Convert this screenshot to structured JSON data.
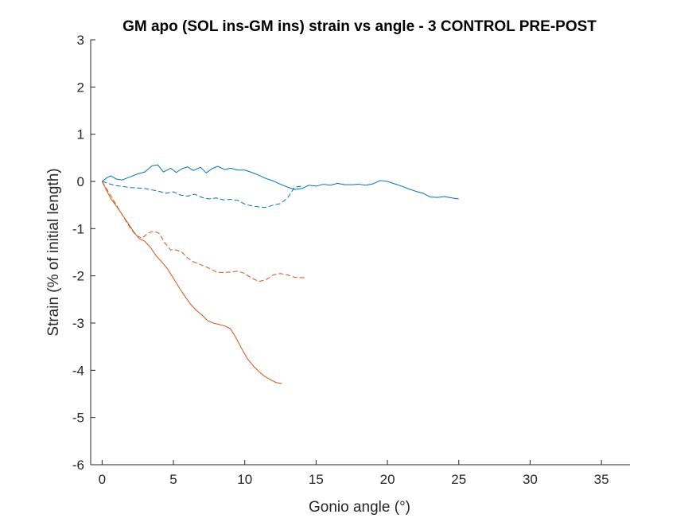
{
  "chart_data": {
    "type": "line",
    "title": "GM apo (SOL ins-GM ins) strain vs angle - 3 CONTROL PRE-POST",
    "xlabel": "Gonio angle (°)",
    "ylabel": "Strain (% of initial length)",
    "xlim": [
      -0.8,
      37
    ],
    "ylim": [
      -6,
      3
    ],
    "xticks": [
      0,
      5,
      10,
      15,
      20,
      25,
      30,
      35
    ],
    "yticks": [
      3,
      2,
      1,
      0,
      -1,
      -2,
      -3,
      -4,
      -5,
      -6
    ],
    "grid": false,
    "legend": "none",
    "series": [
      {
        "color": "#0072BD",
        "dash": "solid",
        "x": [
          0,
          0.3,
          0.6,
          1,
          1.4,
          2,
          2.5,
          3,
          3.5,
          3.9,
          4.3,
          4.8,
          5.2,
          5.6,
          6,
          6.4,
          6.9,
          7.3,
          7.7,
          8.1,
          8.6,
          9,
          9.5,
          10,
          10.5,
          11,
          11.5,
          12,
          12.5,
          13,
          13.5,
          14,
          14.5,
          15,
          15.5,
          16,
          16.5,
          17,
          17.5,
          18,
          18.5,
          19,
          19.5,
          20,
          20.5,
          21,
          21.5,
          22,
          22.5,
          23,
          23.5,
          24,
          24.5,
          25
        ],
        "y": [
          0,
          0.07,
          0.12,
          0.05,
          0.03,
          0.1,
          0.16,
          0.2,
          0.33,
          0.35,
          0.2,
          0.28,
          0.19,
          0.27,
          0.31,
          0.23,
          0.3,
          0.18,
          0.27,
          0.32,
          0.25,
          0.28,
          0.24,
          0.24,
          0.19,
          0.13,
          0.06,
          0.01,
          -0.06,
          -0.12,
          -0.17,
          -0.15,
          -0.08,
          -0.1,
          -0.06,
          -0.08,
          -0.04,
          -0.07,
          -0.07,
          -0.06,
          -0.08,
          -0.05,
          0.02,
          0.0,
          -0.05,
          -0.1,
          -0.16,
          -0.21,
          -0.25,
          -0.33,
          -0.34,
          -0.32,
          -0.35,
          -0.37
        ]
      },
      {
        "color": "#0072BD",
        "dash": "dashed",
        "x": [
          0,
          0.5,
          1,
          1.5,
          2,
          2.5,
          3,
          3.5,
          4,
          4.5,
          5,
          5.5,
          6,
          6.5,
          7,
          7.5,
          8,
          8.5,
          9,
          9.5,
          10,
          10.5,
          11,
          11.5,
          12,
          12.5,
          13,
          13.5,
          14
        ],
        "y": [
          0,
          -0.05,
          -0.09,
          -0.11,
          -0.13,
          -0.14,
          -0.15,
          -0.18,
          -0.21,
          -0.25,
          -0.22,
          -0.29,
          -0.31,
          -0.27,
          -0.34,
          -0.37,
          -0.35,
          -0.39,
          -0.38,
          -0.4,
          -0.48,
          -0.52,
          -0.54,
          -0.55,
          -0.5,
          -0.47,
          -0.35,
          -0.12,
          -0.1
        ]
      },
      {
        "color": "#D95319",
        "dash": "solid",
        "x": [
          0,
          0.3,
          0.6,
          1,
          1.4,
          1.8,
          2.2,
          2.6,
          3,
          3.4,
          3.8,
          4.2,
          4.6,
          5,
          5.4,
          5.8,
          6.2,
          6.6,
          7,
          7.4,
          7.8,
          8.2,
          8.6,
          9,
          9.4,
          9.8,
          10.2,
          10.6,
          11,
          11.4,
          11.8,
          12.2,
          12.6
        ],
        "y": [
          0,
          -0.18,
          -0.36,
          -0.52,
          -0.7,
          -0.88,
          -1.06,
          -1.21,
          -1.27,
          -1.4,
          -1.58,
          -1.71,
          -1.86,
          -2.05,
          -2.25,
          -2.43,
          -2.6,
          -2.73,
          -2.83,
          -2.95,
          -3.0,
          -3.03,
          -3.06,
          -3.12,
          -3.32,
          -3.55,
          -3.76,
          -3.91,
          -4.03,
          -4.13,
          -4.2,
          -4.26,
          -4.28
        ]
      },
      {
        "color": "#D95319",
        "dash": "dashed",
        "x": [
          0,
          0.4,
          0.8,
          1.2,
          1.6,
          2,
          2.4,
          2.8,
          3.2,
          3.6,
          4,
          4.4,
          4.8,
          5.2,
          5.6,
          6,
          6.4,
          6.8,
          7.2,
          7.6,
          8,
          8.5,
          9,
          9.5,
          10,
          10.5,
          11,
          11.5,
          12,
          12.5,
          13,
          13.5,
          14.2
        ],
        "y": [
          0,
          -0.2,
          -0.4,
          -0.6,
          -0.8,
          -1.0,
          -1.15,
          -1.2,
          -1.1,
          -1.05,
          -1.1,
          -1.3,
          -1.45,
          -1.45,
          -1.5,
          -1.62,
          -1.7,
          -1.75,
          -1.8,
          -1.85,
          -1.92,
          -1.93,
          -1.92,
          -1.9,
          -1.95,
          -2.05,
          -2.12,
          -2.08,
          -1.98,
          -1.95,
          -1.98,
          -2.03,
          -2.04
        ]
      }
    ]
  }
}
